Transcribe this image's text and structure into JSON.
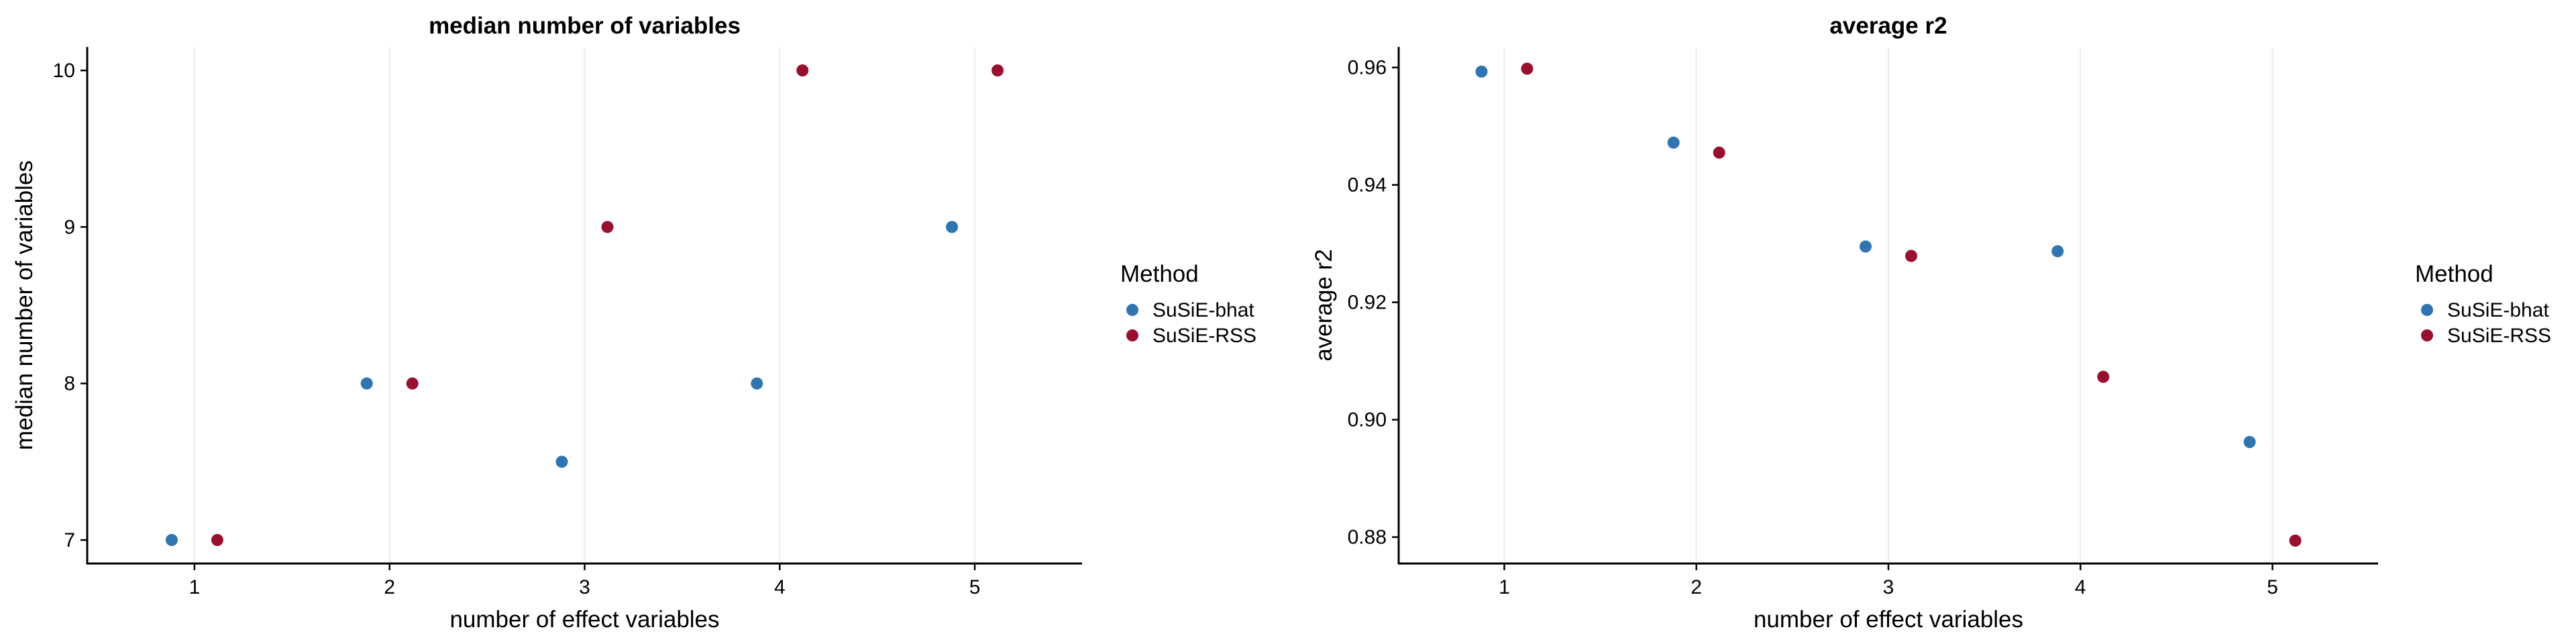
{
  "chart_data": [
    {
      "type": "scatter",
      "title": "median number of variables",
      "xlabel": "number of effect variables",
      "ylabel": "median number of variables",
      "xlim": [
        0.45,
        5.55
      ],
      "ylim": [
        6.85,
        10.15
      ],
      "xticks": [
        1,
        2,
        3,
        4,
        5
      ],
      "yticks": [
        7,
        8,
        9,
        10
      ],
      "x_grid": true,
      "legend": {
        "title": "Method",
        "position": "right",
        "entries": [
          "SuSiE-bhat",
          "SuSiE-RSS"
        ]
      },
      "series": [
        {
          "name": "SuSiE-bhat",
          "color": "#2e75b1",
          "x": [
            1,
            2,
            3,
            4,
            5
          ],
          "y": [
            7.0,
            8.0,
            7.5,
            8.0,
            9.0
          ]
        },
        {
          "name": "SuSiE-RSS",
          "color": "#9a0f2d",
          "x": [
            1,
            2,
            3,
            4,
            5
          ],
          "y": [
            7.0,
            8.0,
            9.0,
            10.0,
            10.0
          ]
        }
      ]
    },
    {
      "type": "scatter",
      "title": "average r2",
      "xlabel": "number of effect variables",
      "ylabel": "average r2",
      "xlim": [
        0.45,
        5.55
      ],
      "ylim": [
        0.8755,
        0.9635
      ],
      "xticks": [
        1,
        2,
        3,
        4,
        5
      ],
      "yticks": [
        0.88,
        0.9,
        0.92,
        0.94,
        0.96
      ],
      "ytick_decimals": 2,
      "x_grid": true,
      "legend": {
        "title": "Method",
        "position": "right",
        "entries": [
          "SuSiE-bhat",
          "SuSiE-RSS"
        ]
      },
      "series": [
        {
          "name": "SuSiE-bhat",
          "color": "#2e75b1",
          "x": [
            1,
            2,
            3,
            4,
            5
          ],
          "y": [
            0.9593,
            0.9472,
            0.9295,
            0.9287,
            0.8962
          ]
        },
        {
          "name": "SuSiE-RSS",
          "color": "#9a0f2d",
          "x": [
            1,
            2,
            3,
            4,
            5
          ],
          "y": [
            0.9598,
            0.9455,
            0.9279,
            0.9073,
            0.8794
          ]
        }
      ]
    }
  ]
}
